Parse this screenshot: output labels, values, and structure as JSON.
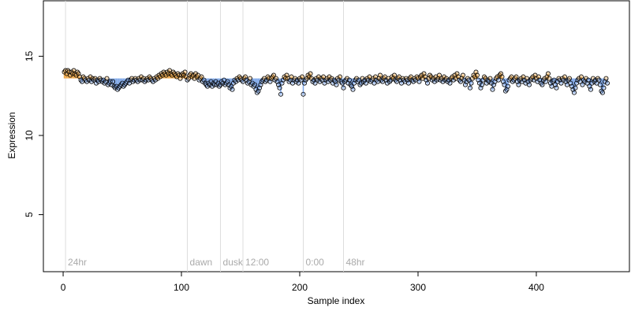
{
  "chart_data": {
    "type": "lollipop-scatter",
    "xlabel": "Sample index",
    "ylabel": "Expression",
    "xlim": [
      -16.7,
      478.7
    ],
    "xticks": [
      0,
      100,
      200,
      300,
      400
    ],
    "ylim": [
      1.4,
      18.5
    ],
    "yticks": [
      5,
      10,
      15
    ],
    "baseline": 13.6,
    "above_color": "#f0a848",
    "below_color": "#7ea7e8",
    "point_color": "#000000",
    "annotations": [
      {
        "x": 2,
        "label": "24hr"
      },
      {
        "x": 105,
        "label": "dawn"
      },
      {
        "x": 133,
        "label": "dusk"
      },
      {
        "x": 152,
        "label": "12:00"
      },
      {
        "x": 203,
        "label": "0:00"
      },
      {
        "x": 237,
        "label": "48hr"
      }
    ],
    "annotation_y": 2.0,
    "values": [
      14.0,
      14.1,
      13.9,
      14.1,
      14.0,
      13.8,
      14.0,
      13.9,
      14.1,
      13.9,
      13.8,
      14.0,
      13.9,
      13.7,
      13.5,
      13.4,
      13.7,
      13.6,
      13.5,
      13.4,
      13.6,
      13.5,
      13.7,
      13.4,
      13.6,
      13.5,
      13.6,
      13.3,
      13.5,
      13.4,
      13.6,
      13.5,
      13.4,
      13.5,
      13.3,
      13.4,
      13.6,
      13.2,
      13.3,
      13.4,
      13.2,
      13.4,
      13.1,
      13.0,
      13.1,
      12.9,
      13.0,
      13.1,
      13.2,
      13.3,
      13.1,
      13.2,
      13.3,
      13.4,
      13.5,
      13.3,
      13.5,
      13.6,
      13.4,
      13.5,
      13.6,
      13.5,
      13.4,
      13.6,
      13.5,
      13.7,
      13.5,
      13.6,
      13.4,
      13.5,
      13.6,
      13.5,
      13.7,
      13.6,
      13.5,
      13.4,
      13.6,
      13.5,
      13.7,
      13.6,
      13.8,
      13.7,
      13.9,
      13.8,
      14.0,
      13.9,
      13.8,
      14.0,
      13.9,
      14.1,
      13.9,
      13.8,
      14.0,
      13.9,
      13.8,
      13.7,
      13.9,
      13.8,
      13.6,
      13.8,
      13.9,
      13.8,
      14.0,
      13.7,
      13.5,
      13.6,
      13.8,
      13.9,
      13.7,
      13.8,
      13.6,
      13.9,
      13.7,
      13.8,
      13.5,
      13.6,
      13.7,
      13.4,
      13.5,
      13.3,
      13.2,
      13.1,
      13.3,
      13.2,
      13.4,
      13.1,
      13.3,
      13.2,
      13.4,
      13.2,
      13.3,
      13.1,
      13.2,
      13.4,
      13.3,
      13.5,
      13.2,
      13.3,
      13.4,
      13.2,
      13.0,
      13.1,
      12.9,
      13.3,
      13.5,
      13.4,
      13.6,
      13.5,
      13.7,
      13.6,
      13.5,
      13.4,
      13.6,
      13.7,
      13.5,
      13.3,
      13.4,
      13.6,
      13.2,
      13.3,
      13.1,
      13.2,
      12.9,
      12.7,
      12.8,
      13.0,
      13.2,
      13.4,
      13.5,
      13.6,
      13.4,
      13.5,
      13.7,
      13.6,
      13.4,
      13.6,
      13.7,
      13.8,
      13.5,
      13.6,
      13.4,
      13.2,
      13.0,
      12.6,
      13.3,
      13.5,
      13.7,
      13.6,
      13.8,
      13.6,
      13.4,
      13.5,
      13.7,
      13.3,
      13.5,
      13.6,
      13.4,
      13.5,
      13.3,
      13.6,
      13.5,
      13.7,
      12.6,
      13.3,
      13.5,
      13.6,
      13.8,
      13.7,
      13.9,
      13.6,
      13.4,
      13.5,
      13.3,
      13.6,
      13.5,
      13.7,
      13.4,
      13.6,
      13.5,
      13.7,
      13.3,
      13.5,
      13.6,
      13.4,
      13.7,
      13.5,
      13.6,
      13.3,
      13.5,
      13.4,
      13.2,
      13.6,
      13.5,
      13.7,
      13.4,
      13.3,
      13.0,
      13.4,
      13.5,
      13.6,
      13.3,
      13.5,
      13.2,
      13.1,
      12.9,
      13.3,
      13.5,
      13.6,
      13.4,
      13.5,
      13.2,
      13.3,
      13.6,
      13.4,
      13.5,
      13.3,
      13.6,
      13.5,
      13.7,
      13.4,
      13.5,
      13.6,
      13.3,
      13.7,
      13.5,
      13.4,
      13.6,
      13.8,
      13.5,
      13.4,
      13.6,
      13.7,
      13.5,
      13.3,
      13.6,
      13.4,
      13.5,
      13.7,
      13.6,
      13.8,
      13.5,
      13.4,
      13.6,
      13.7,
      13.5,
      13.3,
      13.6,
      13.5,
      13.4,
      13.6,
      13.5,
      13.3,
      13.6,
      13.7,
      13.5,
      13.4,
      13.6,
      13.5,
      13.7,
      13.6,
      13.4,
      13.7,
      13.8,
      13.6,
      13.9,
      13.7,
      13.5,
      13.3,
      13.6,
      13.8,
      13.7,
      13.5,
      13.6,
      13.4,
      13.7,
      13.5,
      13.6,
      13.8,
      13.5,
      13.6,
      13.4,
      13.7,
      13.5,
      13.6,
      13.4,
      13.5,
      13.3,
      13.6,
      13.7,
      13.5,
      13.8,
      13.6,
      13.9,
      13.7,
      13.5,
      13.4,
      13.6,
      13.8,
      13.5,
      13.2,
      13.4,
      13.6,
      13.5,
      13.0,
      13.3,
      13.6,
      13.8,
      13.7,
      14.0,
      13.8,
      13.5,
      13.3,
      13.0,
      13.2,
      13.5,
      13.7,
      13.6,
      13.3,
      13.5,
      13.4,
      13.6,
      13.3,
      12.9,
      13.2,
      13.4,
      13.6,
      13.7,
      13.5,
      13.8,
      13.9,
      13.7,
      13.4,
      13.2,
      12.8,
      12.9,
      13.1,
      13.5,
      13.6,
      13.7,
      13.4,
      13.5,
      13.6,
      13.7,
      13.4,
      13.2,
      13.5,
      13.6,
      13.4,
      13.7,
      13.5,
      13.3,
      13.6,
      13.4,
      13.2,
      13.5,
      13.6,
      13.7,
      13.5,
      13.8,
      13.6,
      13.4,
      13.7,
      13.5,
      13.3,
      13.2,
      13.5,
      13.6,
      13.4,
      13.7,
      13.9,
      13.6,
      13.3,
      13.1,
      13.4,
      13.5,
      13.2,
      13.0,
      13.4,
      13.6,
      13.5,
      13.3,
      13.6,
      13.5,
      13.7,
      13.4,
      13.2,
      13.5,
      13.6,
      13.3,
      13.1,
      12.9,
      12.7,
      13.0,
      13.3,
      13.5,
      13.6,
      13.4,
      13.7,
      13.2,
      13.5,
      13.4,
      13.6,
      13.3,
      13.5,
      13.1,
      12.9,
      13.3,
      13.6,
      13.4,
      13.5,
      13.3,
      13.6,
      13.5,
      13.2,
      12.8,
      12.7,
      13.0,
      13.4,
      13.6,
      13.3
    ]
  }
}
